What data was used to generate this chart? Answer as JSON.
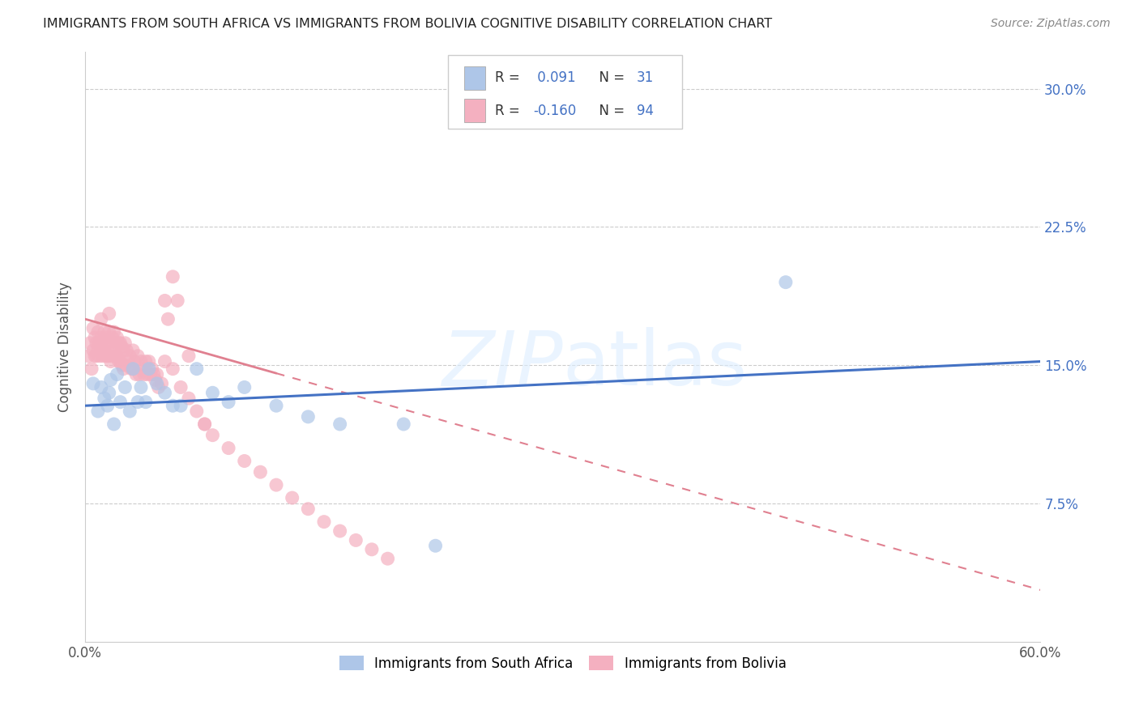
{
  "title": "IMMIGRANTS FROM SOUTH AFRICA VS IMMIGRANTS FROM BOLIVIA COGNITIVE DISABILITY CORRELATION CHART",
  "source": "Source: ZipAtlas.com",
  "ylabel": "Cognitive Disability",
  "series1_label": "Immigrants from South Africa",
  "series2_label": "Immigrants from Bolivia",
  "series1_R": "0.091",
  "series1_N": "31",
  "series2_R": "-0.160",
  "series2_N": "94",
  "series1_color": "#aec6e8",
  "series1_edge": "#6699cc",
  "series2_color": "#f4b0c0",
  "series2_edge": "#e080a0",
  "series1_line_color": "#4472c4",
  "series2_line_color": "#e08090",
  "background_color": "#ffffff",
  "xlim": [
    0.0,
    0.6
  ],
  "ylim": [
    0.0,
    0.32
  ],
  "series1_x": [
    0.005,
    0.008,
    0.01,
    0.012,
    0.014,
    0.015,
    0.016,
    0.018,
    0.02,
    0.022,
    0.025,
    0.028,
    0.03,
    0.033,
    0.035,
    0.038,
    0.04,
    0.045,
    0.05,
    0.055,
    0.06,
    0.07,
    0.08,
    0.09,
    0.1,
    0.12,
    0.14,
    0.16,
    0.2,
    0.44,
    0.22
  ],
  "series1_y": [
    0.14,
    0.125,
    0.138,
    0.132,
    0.128,
    0.135,
    0.142,
    0.118,
    0.145,
    0.13,
    0.138,
    0.125,
    0.148,
    0.13,
    0.138,
    0.13,
    0.148,
    0.14,
    0.135,
    0.128,
    0.128,
    0.148,
    0.135,
    0.13,
    0.138,
    0.128,
    0.122,
    0.118,
    0.118,
    0.195,
    0.052
  ],
  "series2_x": [
    0.002,
    0.003,
    0.004,
    0.005,
    0.005,
    0.006,
    0.006,
    0.007,
    0.007,
    0.008,
    0.008,
    0.009,
    0.009,
    0.01,
    0.01,
    0.01,
    0.011,
    0.011,
    0.012,
    0.012,
    0.013,
    0.013,
    0.014,
    0.014,
    0.015,
    0.015,
    0.015,
    0.016,
    0.016,
    0.017,
    0.017,
    0.018,
    0.018,
    0.019,
    0.019,
    0.02,
    0.02,
    0.021,
    0.021,
    0.022,
    0.022,
    0.023,
    0.023,
    0.024,
    0.024,
    0.025,
    0.025,
    0.026,
    0.027,
    0.028,
    0.029,
    0.03,
    0.03,
    0.031,
    0.032,
    0.033,
    0.034,
    0.035,
    0.036,
    0.037,
    0.038,
    0.039,
    0.04,
    0.041,
    0.042,
    0.043,
    0.044,
    0.045,
    0.046,
    0.048,
    0.05,
    0.052,
    0.055,
    0.058,
    0.06,
    0.065,
    0.07,
    0.075,
    0.08,
    0.09,
    0.1,
    0.11,
    0.12,
    0.13,
    0.14,
    0.15,
    0.16,
    0.17,
    0.18,
    0.19,
    0.05,
    0.055,
    0.065,
    0.075
  ],
  "series2_y": [
    0.155,
    0.162,
    0.148,
    0.17,
    0.158,
    0.165,
    0.155,
    0.162,
    0.155,
    0.168,
    0.158,
    0.162,
    0.155,
    0.165,
    0.175,
    0.158,
    0.162,
    0.155,
    0.168,
    0.158,
    0.165,
    0.155,
    0.162,
    0.155,
    0.168,
    0.178,
    0.155,
    0.162,
    0.152,
    0.165,
    0.155,
    0.168,
    0.158,
    0.162,
    0.155,
    0.165,
    0.155,
    0.162,
    0.152,
    0.162,
    0.152,
    0.16,
    0.15,
    0.158,
    0.148,
    0.162,
    0.15,
    0.158,
    0.152,
    0.155,
    0.148,
    0.158,
    0.148,
    0.152,
    0.145,
    0.155,
    0.145,
    0.152,
    0.148,
    0.145,
    0.152,
    0.145,
    0.152,
    0.145,
    0.148,
    0.145,
    0.142,
    0.145,
    0.138,
    0.14,
    0.185,
    0.175,
    0.198,
    0.185,
    0.138,
    0.132,
    0.125,
    0.118,
    0.112,
    0.105,
    0.098,
    0.092,
    0.085,
    0.078,
    0.072,
    0.065,
    0.06,
    0.055,
    0.05,
    0.045,
    0.152,
    0.148,
    0.155,
    0.118
  ],
  "trend1_x0": 0.0,
  "trend1_y0": 0.128,
  "trend1_x1": 0.6,
  "trend1_y1": 0.152,
  "trend2_x0": 0.0,
  "trend2_y0": 0.175,
  "trend2_x1": 0.6,
  "trend2_y1": 0.028,
  "trend2_solid_end": 0.12
}
